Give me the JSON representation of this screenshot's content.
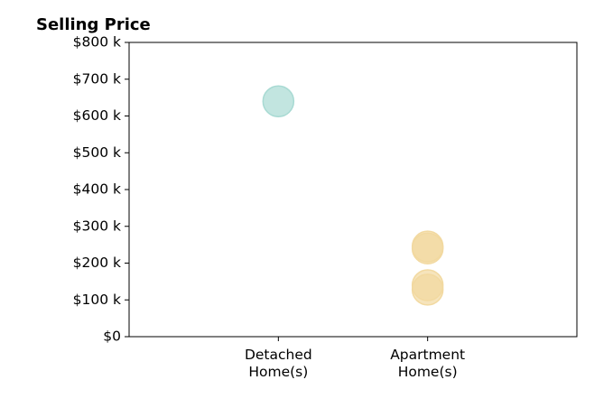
{
  "chart_data": {
    "type": "scatter",
    "title": "Selling Price",
    "xlabel": "",
    "ylabel": "",
    "categories": [
      [
        "Detached",
        "Home(s)"
      ],
      [
        "Apartment",
        "Home(s)"
      ]
    ],
    "ylim": [
      0,
      800000
    ],
    "yticks": [
      {
        "value": 0,
        "label": "$0"
      },
      {
        "value": 100000,
        "label": "$100 k"
      },
      {
        "value": 200000,
        "label": "$200 k"
      },
      {
        "value": 300000,
        "label": "$300 k"
      },
      {
        "value": 400000,
        "label": "$400 k"
      },
      {
        "value": 500000,
        "label": "$500 k"
      },
      {
        "value": 600000,
        "label": "$600 k"
      },
      {
        "value": 700000,
        "label": "$700 k"
      },
      {
        "value": 800000,
        "label": "$800 k"
      }
    ],
    "grid": false,
    "points": [
      {
        "category": 0,
        "value": 640000,
        "color": "#a8dad3"
      },
      {
        "category": 1,
        "value": 245000,
        "color": "#f2d9a0"
      },
      {
        "category": 1,
        "value": 240000,
        "color": "#f2d9a0"
      },
      {
        "category": 1,
        "value": 140000,
        "color": "#f2d9a0"
      },
      {
        "category": 1,
        "value": 128000,
        "color": "#f2d9a0"
      }
    ]
  }
}
